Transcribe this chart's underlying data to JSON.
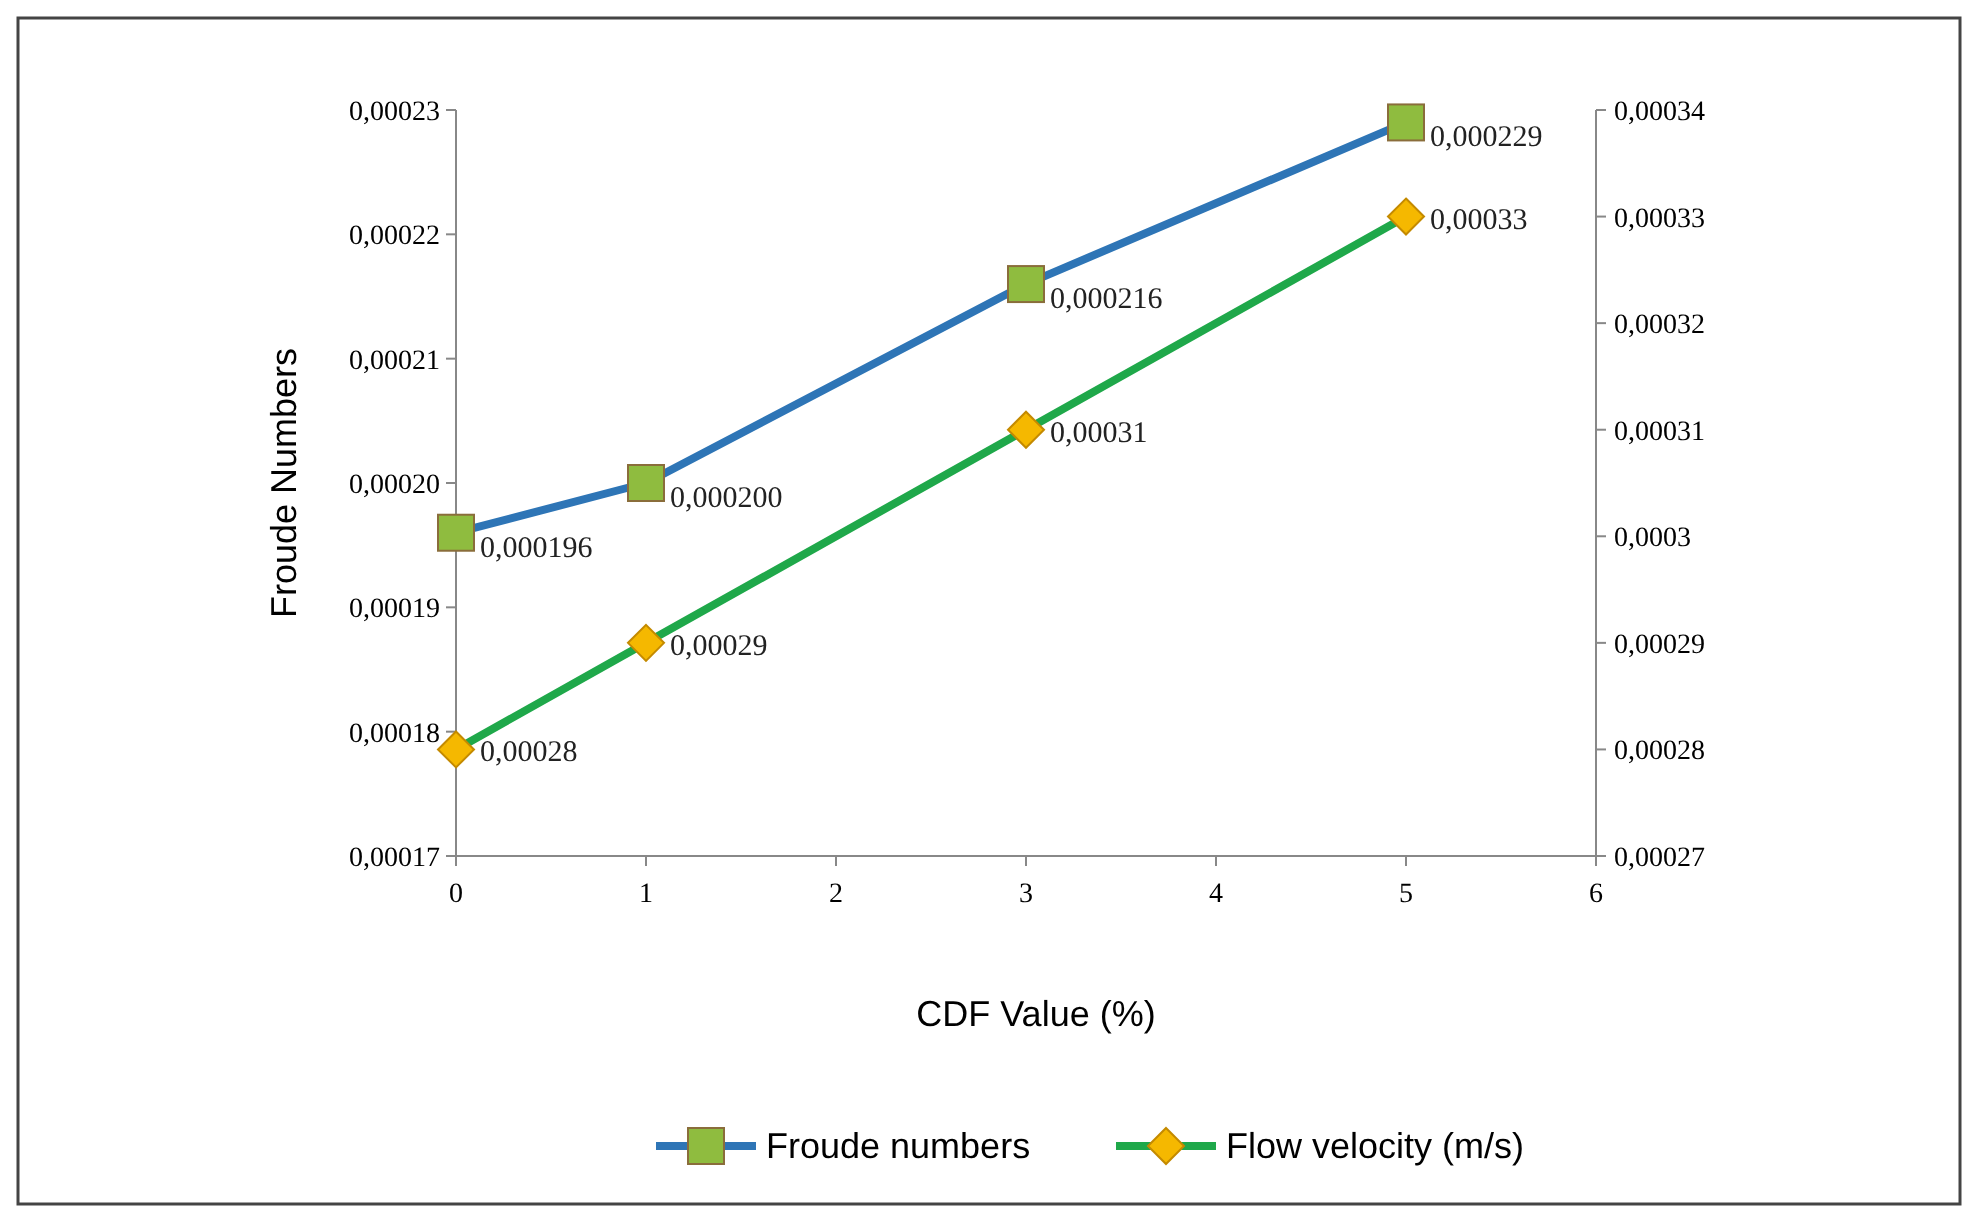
{
  "chart_data": {
    "type": "line",
    "xlabel": "CDF Value (%)",
    "ylabel": "Froude Numbers",
    "x": [
      0,
      1,
      3,
      5
    ],
    "series": [
      {
        "name": "Froude numbers",
        "color": "#2e75b6",
        "values": [
          0.000196,
          0.0002,
          0.000216,
          0.000229
        ],
        "marker": "square",
        "colors": [
          "#8fbc3f",
          "#8fbc3f",
          "#8fbc3f",
          "#8fbc3f"
        ],
        "value_labels": [
          "0,000196",
          "0,000200",
          "0,000216",
          "0,000229"
        ]
      },
      {
        "name": "Flow velocity (m/s)",
        "color": "#1fa84a",
        "values": [
          0.00028,
          0.00029,
          0.00031,
          0.00033
        ],
        "axis": "y2",
        "marker": "diamond",
        "colors": [
          "#f5b800",
          "#f5b800",
          "#f5b800",
          "#f5b800"
        ],
        "value_labels": [
          "0,00028",
          "0,00029",
          "0,00031",
          "0,00033"
        ]
      }
    ],
    "xlim": [
      0,
      6
    ],
    "xticks": [
      0,
      1,
      2,
      3,
      4,
      5,
      6
    ],
    "ylim": [
      0.00017,
      0.00023
    ],
    "yticks": [
      {
        "value": 0.00017,
        "label": "0,00017"
      },
      {
        "value": 0.00018,
        "label": "0,00018"
      },
      {
        "value": 0.00019,
        "label": "0,00019"
      },
      {
        "value": 0.0002,
        "label": "0,00020"
      },
      {
        "value": 0.00021,
        "label": "0,00021"
      },
      {
        "value": 0.00022,
        "label": "0,00022"
      },
      {
        "value": 0.00023,
        "label": "0,00023"
      }
    ],
    "y2lim": [
      0.00027,
      0.00034
    ],
    "y2ticks": [
      {
        "value": 0.00027,
        "label": "0,00027"
      },
      {
        "value": 0.00028,
        "label": "0,00028"
      },
      {
        "value": 0.00029,
        "label": "0,00029"
      },
      {
        "value": 0.0003,
        "label": "0,0003"
      },
      {
        "value": 0.00031,
        "label": "0,00031"
      },
      {
        "value": 0.00032,
        "label": "0,00032"
      },
      {
        "value": 0.00033,
        "label": "0,00033"
      },
      {
        "value": 0.00034,
        "label": "0,00034"
      }
    ],
    "grid": false,
    "legend": "bottom",
    "line_style": "solid"
  }
}
